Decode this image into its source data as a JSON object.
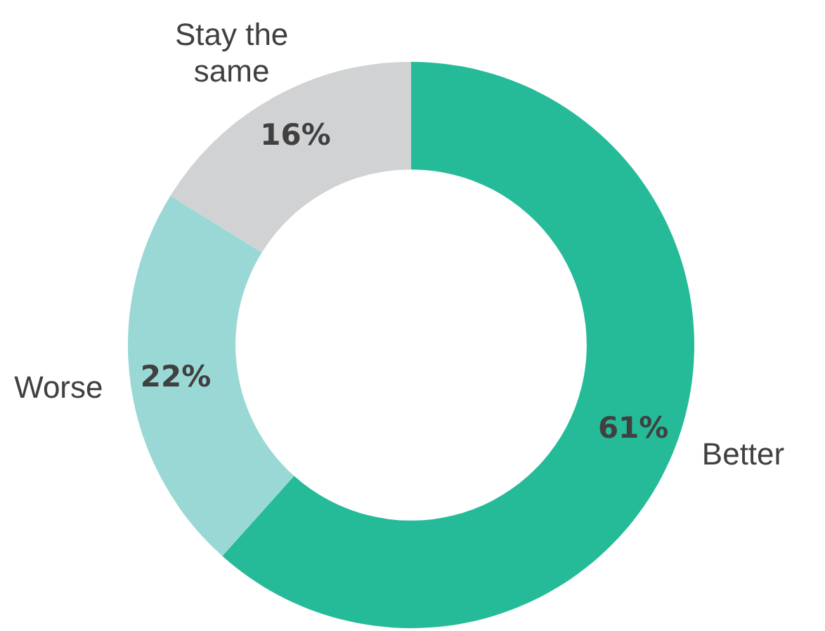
{
  "chart_data": {
    "type": "donut",
    "categories": [
      "Better",
      "Worse",
      "Stay the same"
    ],
    "values": [
      61,
      22,
      16
    ],
    "value_labels": [
      "61%",
      "22%",
      "16%"
    ],
    "colors": [
      "#26bb98",
      "#9ad8d5",
      "#d1d2d4"
    ],
    "legend": false
  }
}
